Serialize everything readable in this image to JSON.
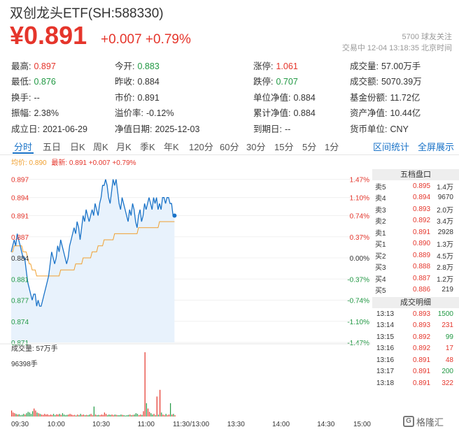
{
  "header": {
    "title": "双创龙头ETF(SH:588330)",
    "price": "¥0.891",
    "change": "+0.007 +0.79%",
    "followers": "5700  球友关注",
    "status": "交易中  12-04  13:18:35  北京时间"
  },
  "stats": [
    [
      {
        "label": "最高:",
        "value": "0.897",
        "color": "red"
      },
      {
        "label": "今开:",
        "value": "0.883",
        "color": "green"
      },
      {
        "label": "涨停:",
        "value": "1.061",
        "color": "red"
      },
      {
        "label": "成交量:",
        "value": "57.00万手",
        "color": ""
      }
    ],
    [
      {
        "label": "最低:",
        "value": "0.876",
        "color": "green"
      },
      {
        "label": "昨收:",
        "value": "0.884",
        "color": ""
      },
      {
        "label": "跌停:",
        "value": "0.707",
        "color": "green"
      },
      {
        "label": "成交额:",
        "value": "5070.39万",
        "color": ""
      }
    ],
    [
      {
        "label": "换手:",
        "value": "--",
        "color": ""
      },
      {
        "label": "市价:",
        "value": "0.891",
        "color": ""
      },
      {
        "label": "单位净值:",
        "value": "0.884",
        "color": ""
      },
      {
        "label": "基金份额:",
        "value": "11.72亿",
        "color": ""
      }
    ],
    [
      {
        "label": "振幅:",
        "value": "2.38%",
        "color": ""
      },
      {
        "label": "溢价率:",
        "value": "-0.12%",
        "color": ""
      },
      {
        "label": "累计净值:",
        "value": "0.884",
        "color": ""
      },
      {
        "label": "资产净值:",
        "value": "10.44亿",
        "color": ""
      }
    ],
    [
      {
        "label": "成立日:",
        "value": "2021-06-29",
        "color": ""
      },
      {
        "label": "净值日期:",
        "value": "2025-12-03",
        "color": ""
      },
      {
        "label": "到期日:",
        "value": "--",
        "color": ""
      },
      {
        "label": "货币单位:",
        "value": "CNY",
        "color": ""
      }
    ]
  ],
  "tabs": [
    "分时",
    "五日",
    "日K",
    "周K",
    "月K",
    "季K",
    "年K",
    "120分",
    "60分",
    "30分",
    "15分",
    "5分",
    "1分"
  ],
  "tabs_right": [
    "区间统计",
    "全屏展示"
  ],
  "legend": {
    "avg": "均价: 0.890",
    "latest": "最新: 0.891 +0.007 +0.79%"
  },
  "colors": {
    "up": "#e5352b",
    "down": "#229944",
    "accent": "#1a73c8",
    "avg_line": "#f0a030"
  },
  "volume": {
    "label": "成交量: 57万手",
    "max_label": "96398手"
  },
  "order_book": {
    "title": "五档盘口",
    "rows": [
      {
        "side": "卖5",
        "price": "0.895",
        "vol": "1.4万",
        "color": "red"
      },
      {
        "side": "卖4",
        "price": "0.894",
        "vol": "9670",
        "color": "red"
      },
      {
        "side": "卖3",
        "price": "0.893",
        "vol": "2.0万",
        "color": "red"
      },
      {
        "side": "卖2",
        "price": "0.892",
        "vol": "3.4万",
        "color": "red"
      },
      {
        "side": "卖1",
        "price": "0.891",
        "vol": "2928",
        "color": "red"
      },
      {
        "side": "买1",
        "price": "0.890",
        "vol": "1.3万",
        "color": "red"
      },
      {
        "side": "买2",
        "price": "0.889",
        "vol": "4.5万",
        "color": "red"
      },
      {
        "side": "买3",
        "price": "0.888",
        "vol": "2.8万",
        "color": "red"
      },
      {
        "side": "买4",
        "price": "0.887",
        "vol": "1.2万",
        "color": "red"
      },
      {
        "side": "买5",
        "price": "0.886",
        "vol": "219",
        "color": "red"
      }
    ]
  },
  "trades": {
    "title": "成交明细",
    "rows": [
      {
        "time": "13:13",
        "price": "0.893",
        "vol": "1500",
        "vcolor": "green"
      },
      {
        "time": "13:14",
        "price": "0.893",
        "vol": "231",
        "vcolor": "red"
      },
      {
        "time": "13:15",
        "price": "0.892",
        "vol": "99",
        "vcolor": "green"
      },
      {
        "time": "13:16",
        "price": "0.892",
        "vol": "17",
        "vcolor": "red"
      },
      {
        "time": "13:16",
        "price": "0.891",
        "vol": "48",
        "vcolor": "red"
      },
      {
        "time": "13:17",
        "price": "0.891",
        "vol": "200",
        "vcolor": "green"
      },
      {
        "time": "13:18",
        "price": "0.891",
        "vol": "322",
        "vcolor": "red"
      }
    ]
  },
  "watermark": "格隆汇",
  "chart_data": {
    "type": "line",
    "prev_close": 0.884,
    "y_ticks": [
      "0.897",
      "0.894",
      "0.891",
      "0.887",
      "0.884",
      "0.881",
      "0.877",
      "0.874",
      "0.871"
    ],
    "y_tick_values": [
      0.897,
      0.894,
      0.891,
      0.8875,
      0.884,
      0.8805,
      0.877,
      0.8735,
      0.87
    ],
    "pct_ticks": [
      "1.47%",
      "1.10%",
      "0.74%",
      "0.37%",
      "0.00%",
      "-0.37%",
      "-0.74%",
      "-1.10%",
      "-1.47%"
    ],
    "x_ticks": [
      "09:30",
      "10:00",
      "10:30",
      "11:00",
      "11:30/13:00",
      "13:30",
      "14:00",
      "14:30",
      "15:00"
    ],
    "ylim": [
      0.87,
      0.898
    ],
    "total_minutes": 240,
    "series": [
      {
        "name": "最新",
        "values": [
          0.885,
          0.886,
          0.887,
          0.886,
          0.888,
          0.887,
          0.886,
          0.885,
          0.884,
          0.884,
          0.882,
          0.88,
          0.879,
          0.878,
          0.877,
          0.878,
          0.878,
          0.876,
          0.877,
          0.876,
          0.876,
          0.877,
          0.878,
          0.879,
          0.88,
          0.881,
          0.883,
          0.885,
          0.884,
          0.883,
          0.884,
          0.886,
          0.885,
          0.887,
          0.886,
          0.885,
          0.884,
          0.883,
          0.884,
          0.886,
          0.887,
          0.888,
          0.889,
          0.888,
          0.89,
          0.889,
          0.887,
          0.889,
          0.891,
          0.89,
          0.892,
          0.891,
          0.89,
          0.891,
          0.892,
          0.891,
          0.893,
          0.892,
          0.891,
          0.893,
          0.894,
          0.896,
          0.896,
          0.897,
          0.896,
          0.894,
          0.893,
          0.895,
          0.897,
          0.896,
          0.897,
          0.895,
          0.893,
          0.892,
          0.894,
          0.893,
          0.892,
          0.891,
          0.89,
          0.892,
          0.891,
          0.893,
          0.892,
          0.89,
          0.889,
          0.891,
          0.892,
          0.89,
          0.891,
          0.893,
          0.892,
          0.893,
          0.894,
          0.893,
          0.892,
          0.894,
          0.893,
          0.894,
          0.892,
          0.893,
          0.892,
          0.894,
          0.894,
          0.893,
          0.894,
          0.894,
          0.893,
          0.893,
          0.891,
          0.891
        ]
      },
      {
        "name": "均价",
        "values": [
          0.885,
          0.885,
          0.886,
          0.886,
          0.886,
          0.886,
          0.886,
          0.886,
          0.885,
          0.885,
          0.885,
          0.884,
          0.883,
          0.883,
          0.882,
          0.882,
          0.882,
          0.881,
          0.881,
          0.881,
          0.881,
          0.881,
          0.881,
          0.881,
          0.881,
          0.881,
          0.881,
          0.881,
          0.881,
          0.881,
          0.881,
          0.881,
          0.881,
          0.882,
          0.882,
          0.882,
          0.882,
          0.882,
          0.882,
          0.882,
          0.882,
          0.882,
          0.882,
          0.883,
          0.883,
          0.883,
          0.883,
          0.883,
          0.884,
          0.884,
          0.884,
          0.884,
          0.884,
          0.884,
          0.885,
          0.885,
          0.885,
          0.885,
          0.886,
          0.886,
          0.886,
          0.886,
          0.887,
          0.887,
          0.887,
          0.887,
          0.887,
          0.887,
          0.887,
          0.888,
          0.888,
          0.888,
          0.888,
          0.888,
          0.888,
          0.888,
          0.888,
          0.888,
          0.888,
          0.888,
          0.888,
          0.888,
          0.888,
          0.888,
          0.888,
          0.889,
          0.889,
          0.889,
          0.889,
          0.889,
          0.889,
          0.889,
          0.889,
          0.889,
          0.889,
          0.889,
          0.889,
          0.889,
          0.889,
          0.89,
          0.89,
          0.89,
          0.89,
          0.89,
          0.89,
          0.89,
          0.89,
          0.89,
          0.89,
          0.89
        ]
      }
    ],
    "volume_values": [
      9000,
      6000,
      5000,
      4000,
      3000,
      3500,
      2000,
      2500,
      4000,
      3000,
      5000,
      7000,
      6000,
      4000,
      8000,
      12000,
      9000,
      6000,
      5000,
      4000,
      3000,
      2500,
      4000,
      3000,
      3500,
      2000,
      3000,
      2500,
      4000,
      2000,
      3500,
      3000,
      4000,
      2500,
      5000,
      3000,
      2000,
      2500,
      3000,
      4000,
      3000,
      2000,
      2500,
      1500,
      3000,
      2000,
      4000,
      2500,
      3000,
      2000,
      2500,
      2000,
      3000,
      4000,
      2000,
      15000,
      3000,
      2000,
      2500,
      2000,
      3000,
      2500,
      6000,
      4000,
      2000,
      3000,
      2500,
      3000,
      2000,
      3000,
      2500,
      2000,
      2000,
      3000,
      2500,
      2000,
      1500,
      2000,
      2500,
      3000,
      2000,
      2500,
      3000,
      5000,
      4000,
      2000,
      3000,
      2500,
      8000,
      96398,
      20000,
      12000,
      7000,
      5000,
      3000,
      4000,
      2000,
      30000,
      3000,
      40000,
      6000,
      3000,
      2000,
      4000,
      2000,
      3000,
      20000,
      3000,
      4000,
      2000
    ]
  }
}
